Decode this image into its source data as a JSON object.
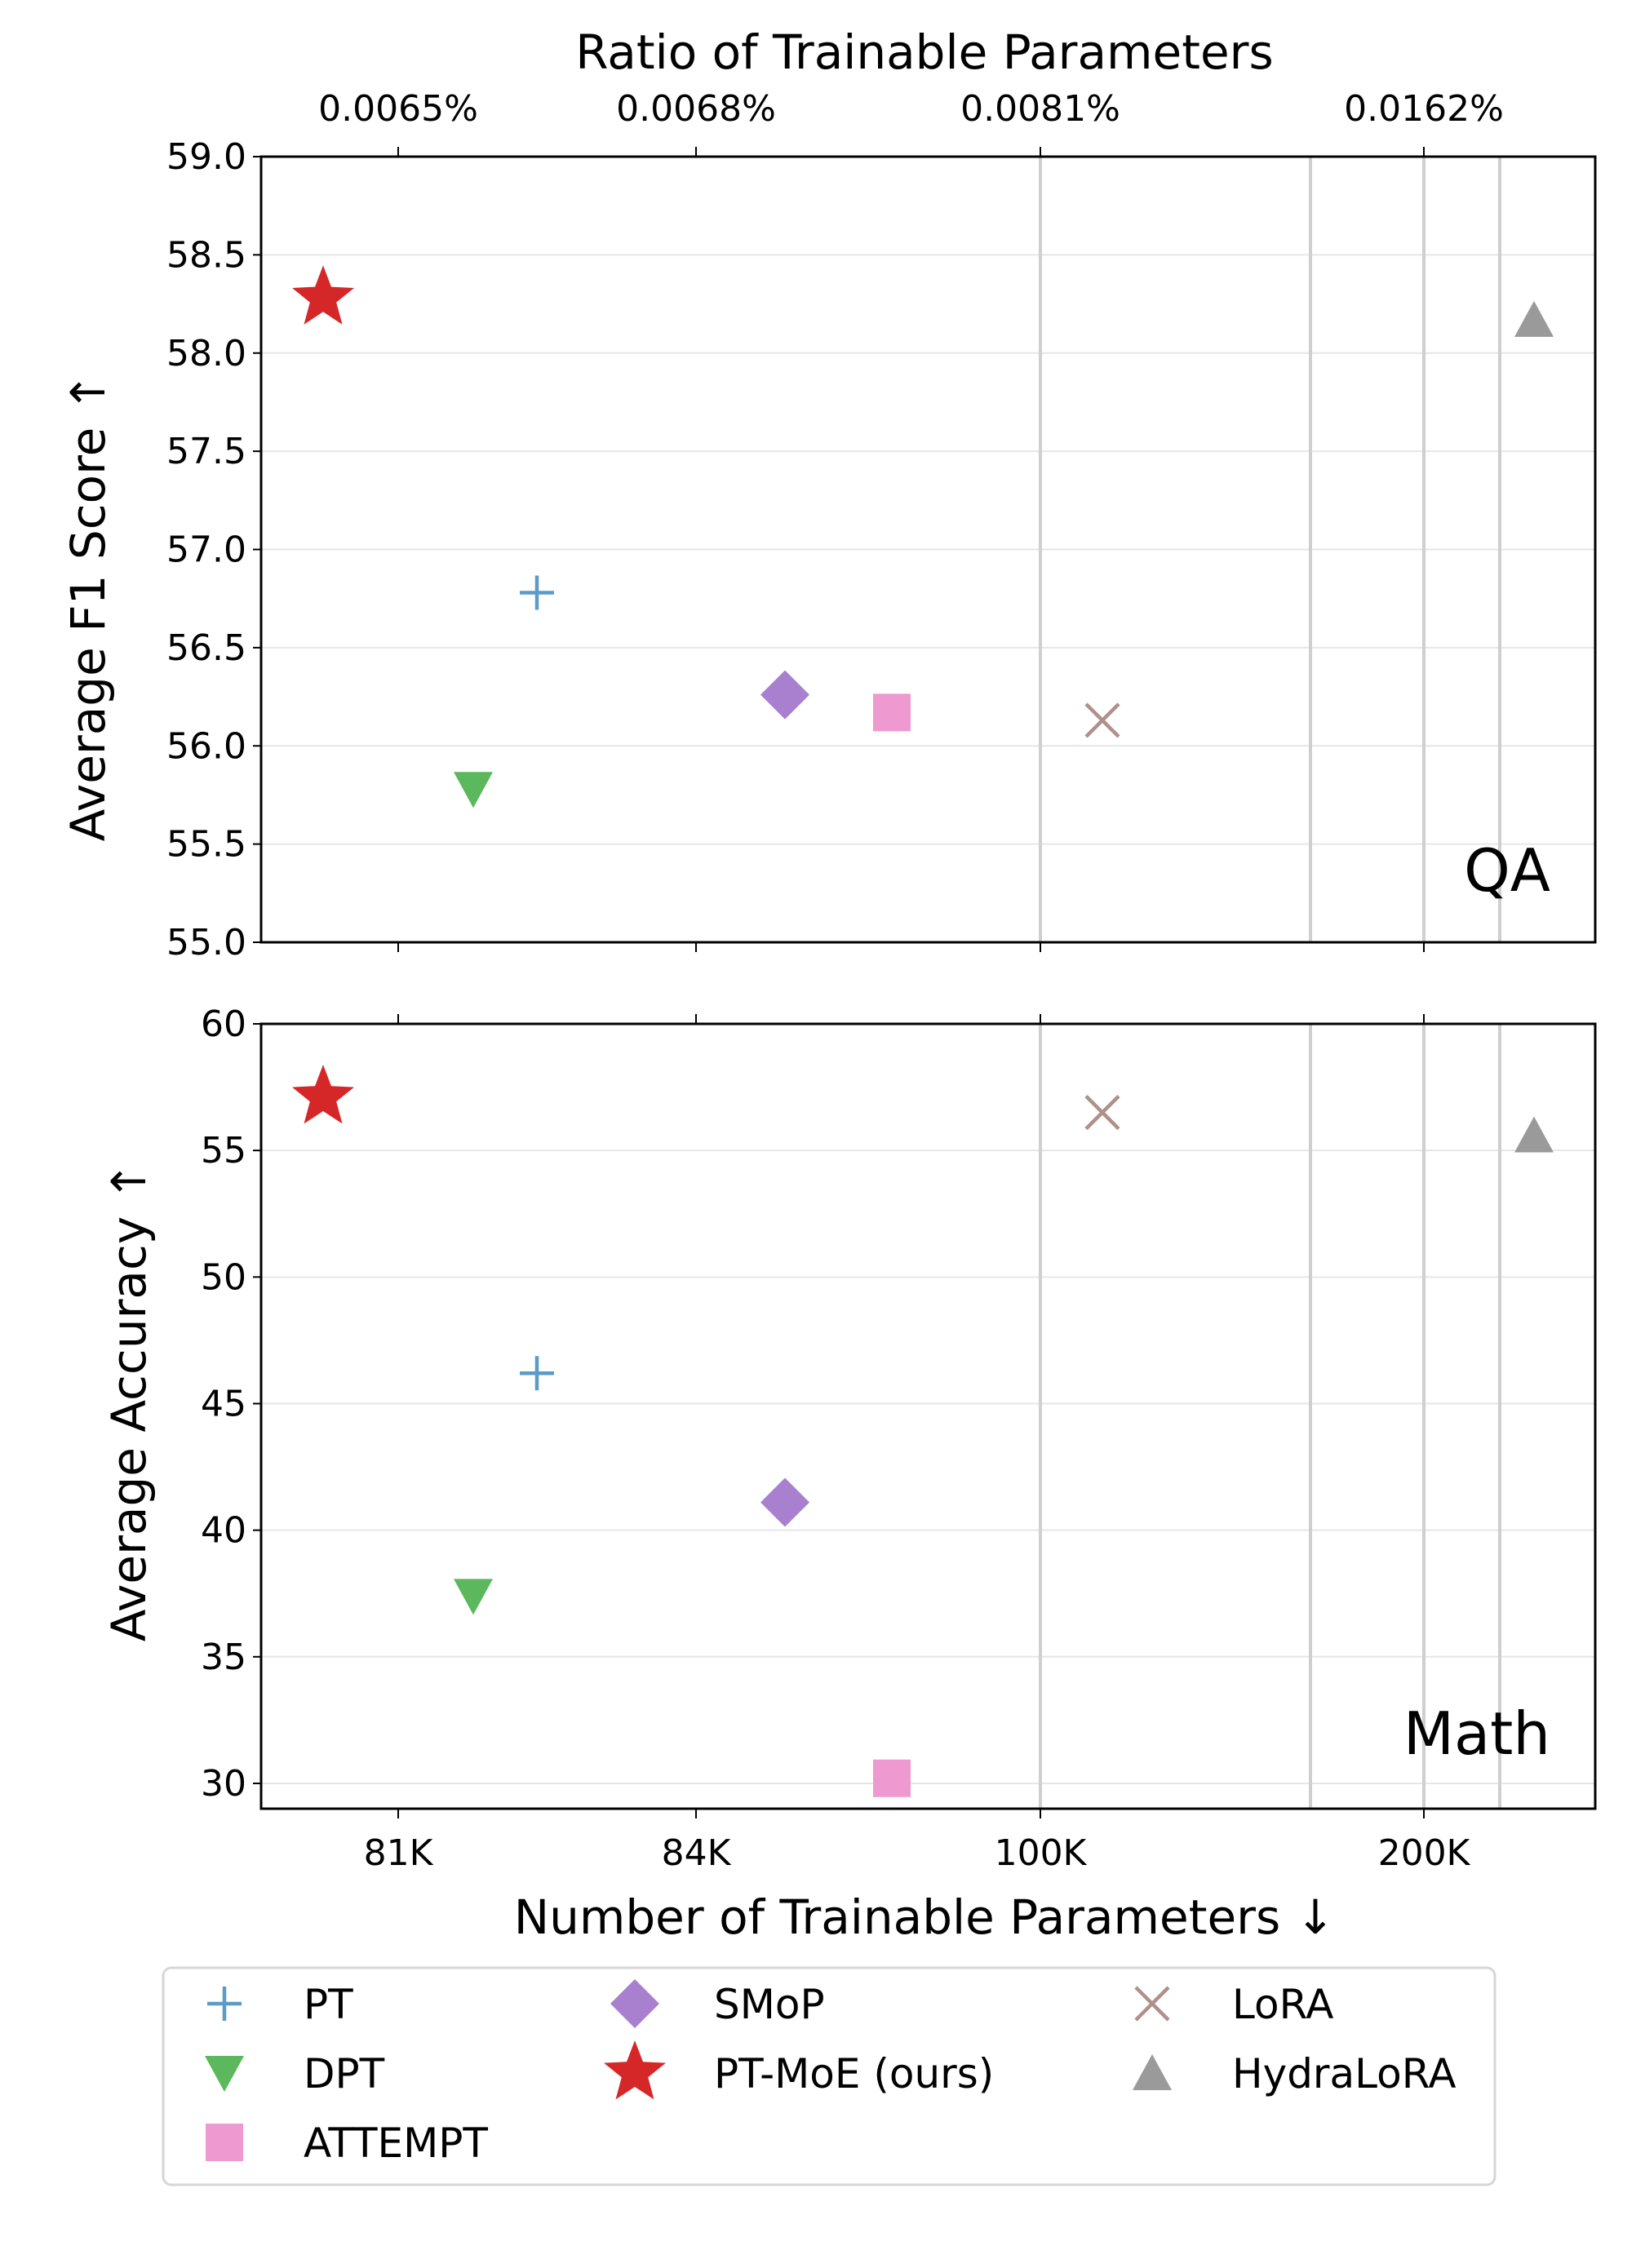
{
  "chart_data": [
    {
      "type": "scatter",
      "title": "",
      "top_axis": {
        "label": "Ratio of Trainable Parameters",
        "tick_labels": [
          "0.0065%",
          "0.0068%",
          "0.0081%",
          "0.0162%"
        ]
      },
      "xlabel": "",
      "ylabel": "Average F1 Score ↑",
      "ylim": [
        55.0,
        59.0
      ],
      "yticks": [
        "55.0",
        "55.5",
        "56.0",
        "56.5",
        "57.0",
        "57.5",
        "58.0",
        "58.5",
        "59.0"
      ],
      "panel_label": "QA",
      "grid": true,
      "series": [
        {
          "name": "PT",
          "x": "82.7K",
          "y": 56.78
        },
        {
          "name": "DPT",
          "x": "82K",
          "y": 55.78
        },
        {
          "name": "ATTEMPT",
          "x": "89K",
          "y": 56.17
        },
        {
          "name": "SMoP",
          "x": "85K",
          "y": 56.26
        },
        {
          "name": "PT-MoE (ours)",
          "x": "80.3K",
          "y": 58.28
        },
        {
          "name": "LoRA",
          "x": "110K",
          "y": 56.13
        },
        {
          "name": "HydraLoRA",
          "x": "260K",
          "y": 58.17
        }
      ]
    },
    {
      "type": "scatter",
      "title": "",
      "xlabel": "Number of Trainable Parameters ↓",
      "x_tick_labels": [
        "81K",
        "84K",
        "100K",
        "200K"
      ],
      "ylabel": "Average Accuracy ↑",
      "ylim": [
        29.0,
        60.0
      ],
      "yticks": [
        "30",
        "35",
        "40",
        "45",
        "50",
        "55",
        "60"
      ],
      "panel_label": "Math",
      "grid": true,
      "series": [
        {
          "name": "PT",
          "x": "82.7K",
          "y": 46.2
        },
        {
          "name": "DPT",
          "x": "82K",
          "y": 37.4
        },
        {
          "name": "ATTEMPT",
          "x": "89K",
          "y": 30.2
        },
        {
          "name": "SMoP",
          "x": "85K",
          "y": 41.1
        },
        {
          "name": "PT-MoE (ours)",
          "x": "80.3K",
          "y": 57.1
        },
        {
          "name": "LoRA",
          "x": "110K",
          "y": 56.5
        },
        {
          "name": "HydraLoRA",
          "x": "260K",
          "y": 55.6
        }
      ]
    }
  ],
  "legend": {
    "placement": "bottom",
    "items": [
      {
        "label": "PT",
        "marker": "plus-icon",
        "color": "#5b9bc8"
      },
      {
        "label": "DPT",
        "marker": "triangle-down-icon",
        "color": "#5cb85c"
      },
      {
        "label": "ATTEMPT",
        "marker": "square-icon",
        "color": "#ee9ad0"
      },
      {
        "label": "SMoP",
        "marker": "diamond-icon",
        "color": "#a97fd0"
      },
      {
        "label": "PT-MoE (ours)",
        "marker": "star-icon",
        "color": "#d62728"
      },
      {
        "label": "LoRA",
        "marker": "x-icon",
        "color": "#b09089"
      },
      {
        "label": "HydraLoRA",
        "marker": "triangle-up-icon",
        "color": "#9a9a9a"
      }
    ]
  }
}
